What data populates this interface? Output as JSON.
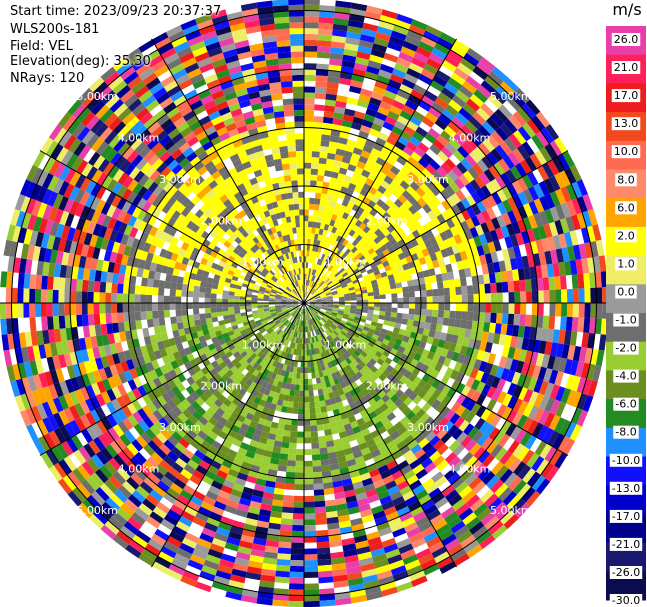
{
  "header": {
    "start_time": "Start time: 2023/09/23 20:37:37",
    "instrument": "WLS200s-181",
    "field": "Field: VEL",
    "elevation": "Elevation(deg): 35.30",
    "nrays": "NRays: 120"
  },
  "chart_data": {
    "type": "heatmap",
    "projection": "polar-ppi",
    "field": "VEL",
    "nrays": 120,
    "range_rings_km": [
      1.0,
      2.0,
      3.0,
      4.0,
      5.0
    ],
    "ring_labels": [
      "1.00km",
      "2.00km",
      "3.00km",
      "4.00km",
      "5.00km"
    ],
    "spoke_angles_deg": [
      0,
      30,
      60,
      90,
      120,
      150,
      180,
      210,
      240,
      270,
      300,
      330
    ],
    "max_range_km": 5.2,
    "colorbar": {
      "unit": "m/s",
      "tick_labels": [
        "26.0",
        "21.0",
        "17.0",
        "13.0",
        "10.0",
        "8.0",
        "6.0",
        "2.0",
        "1.0",
        "0.0",
        "-1.0",
        "-2.0",
        "-4.0",
        "-6.0",
        "-8.0",
        "-10.0",
        "-13.0",
        "-17.0",
        "-21.0",
        "-26.0",
        "-30.0"
      ],
      "colors": [
        "#e83fa8",
        "#ff1f5a",
        "#ee1c1c",
        "#f24a1e",
        "#ff6a52",
        "#ff8a6a",
        "#ffa500",
        "#ffff00",
        "#eeee66",
        "#9a9a9a",
        "#6e6e6e",
        "#9acd32",
        "#6b8e23",
        "#228b22",
        "#1e90ff",
        "#1010ff",
        "#0000cd",
        "#00008b",
        "#191970",
        "#0b0b50"
      ]
    },
    "regions": [
      {
        "sector": "north",
        "range_km": [
          0.0,
          3.1
        ],
        "value": 2.0
      },
      {
        "sector": "north-clutter",
        "range_km": [
          1.0,
          3.0
        ],
        "value": 0.0
      },
      {
        "sector": "south",
        "range_km": [
          0.0,
          3.1
        ],
        "value": -2.0
      },
      {
        "sector": "east-west",
        "range_km": [
          0.5,
          3.1
        ],
        "value": 0.0
      },
      {
        "sector": "outer-noise",
        "range_km": [
          3.1,
          5.2
        ],
        "value": "noise"
      }
    ]
  }
}
